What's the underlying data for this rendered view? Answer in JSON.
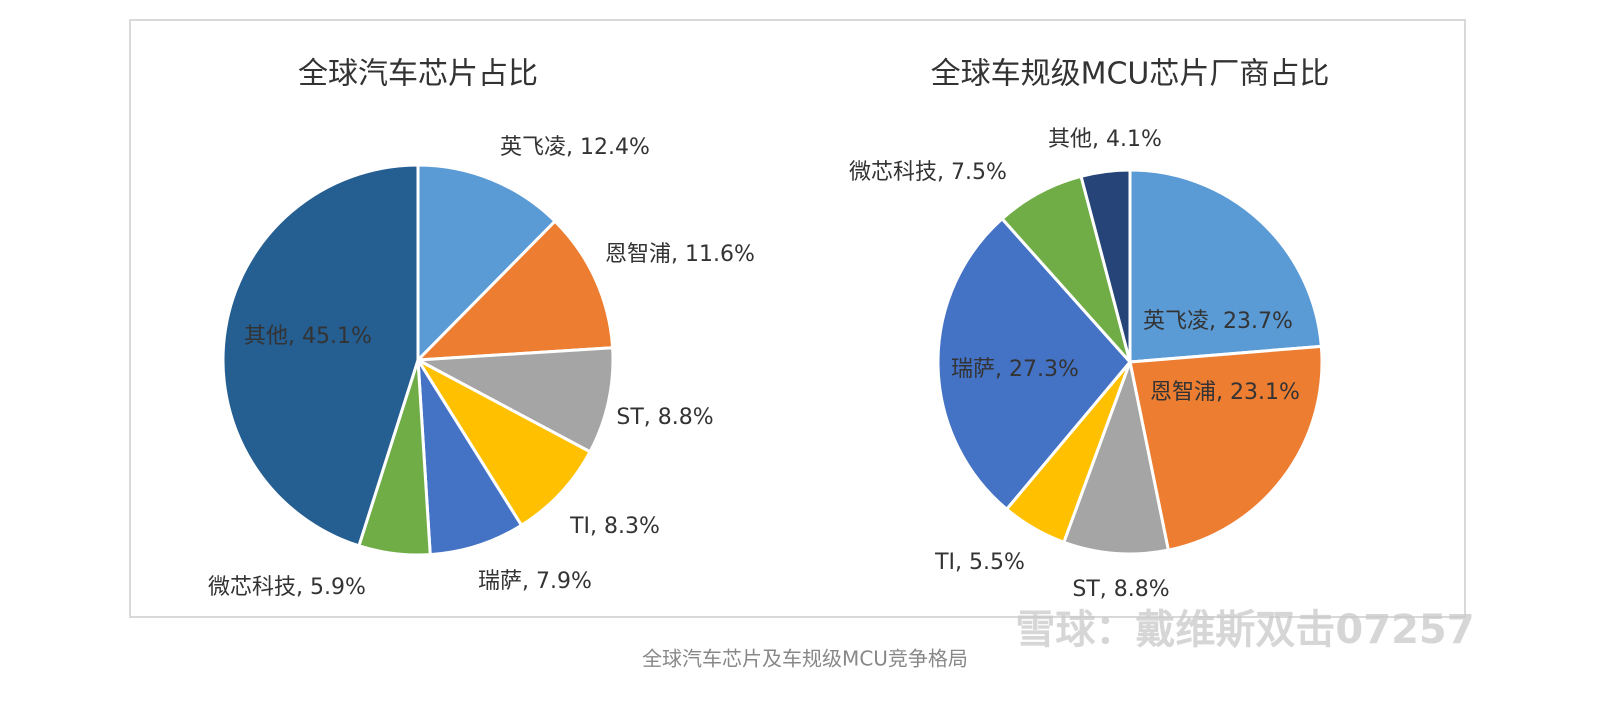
{
  "chart_data": [
    {
      "type": "pie",
      "title": "全球汽车芯片占比",
      "values": [
        12.4,
        11.6,
        8.8,
        8.3,
        7.9,
        5.9,
        45.1
      ],
      "value_labels": [
        "英飞凌, 12.4%",
        "恩智浦, 11.6%",
        "ST, 8.8%",
        "TI, 8.3%",
        "瑞萨, 7.9%",
        "微芯科技, 5.9%",
        "其他, 45.1%"
      ],
      "colors": [
        "#5b9bd5",
        "#ed7d31",
        "#a5a5a5",
        "#ffc000",
        "#4472c4",
        "#70ad47",
        "#255e91"
      ]
    },
    {
      "type": "pie",
      "title": "全球车规级MCU芯片厂商占比",
      "values": [
        23.7,
        23.1,
        8.8,
        5.5,
        27.3,
        7.5,
        4.1
      ],
      "value_labels": [
        "英飞凌, 23.7%",
        "恩智浦, 23.1%",
        "ST, 8.8%",
        "TI, 5.5%",
        "瑞萨, 27.3%",
        "微芯科技, 7.5%",
        "其他, 4.1%"
      ],
      "colors": [
        "#5b9bd5",
        "#ed7d31",
        "#a5a5a5",
        "#ffc000",
        "#4472c4",
        "#70ad47",
        "#264478"
      ]
    }
  ],
  "caption": "全球汽车芯片及车规级MCU竞争格局",
  "watermark": "雪球：戴维斯双击07257"
}
